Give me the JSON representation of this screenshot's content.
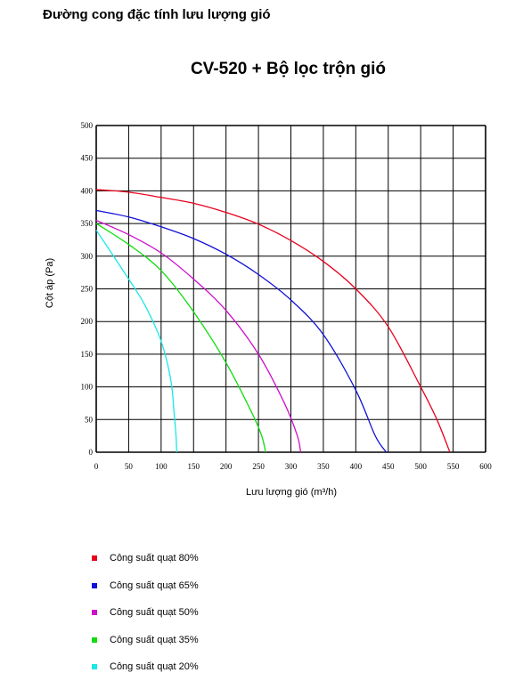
{
  "page_heading": "Đường cong đặc tính lưu lượng gió",
  "chart_data": {
    "type": "line",
    "title": "CV-520 + Bộ lọc trộn gió",
    "xlabel": "Lưu lượng gió  (m³/h)",
    "ylabel": "Cột áp (Pa)",
    "xlim": [
      0,
      600
    ],
    "ylim": [
      0,
      500
    ],
    "xticks": [
      0,
      50,
      100,
      150,
      200,
      250,
      300,
      350,
      400,
      450,
      500,
      550,
      600
    ],
    "yticks": [
      0,
      50,
      100,
      150,
      200,
      250,
      300,
      350,
      400,
      450,
      500
    ],
    "grid": true,
    "legend_position": "bottom",
    "series": [
      {
        "name": "Công suất quạt 80%",
        "color": "#e8001c",
        "points": [
          [
            0,
            402
          ],
          [
            50,
            398
          ],
          [
            100,
            390
          ],
          [
            150,
            381
          ],
          [
            200,
            367
          ],
          [
            250,
            349
          ],
          [
            300,
            324
          ],
          [
            350,
            292
          ],
          [
            400,
            250
          ],
          [
            450,
            192
          ],
          [
            500,
            100
          ],
          [
            525,
            50
          ],
          [
            545,
            0
          ]
        ]
      },
      {
        "name": "Công suất quạt 65%",
        "color": "#1010d8",
        "points": [
          [
            0,
            370
          ],
          [
            50,
            360
          ],
          [
            100,
            345
          ],
          [
            150,
            327
          ],
          [
            200,
            303
          ],
          [
            250,
            272
          ],
          [
            300,
            233
          ],
          [
            350,
            180
          ],
          [
            400,
            95
          ],
          [
            430,
            25
          ],
          [
            447,
            0
          ]
        ]
      },
      {
        "name": "Công suất quạt 50%",
        "color": "#cc10cc",
        "points": [
          [
            0,
            355
          ],
          [
            50,
            333
          ],
          [
            100,
            305
          ],
          [
            150,
            265
          ],
          [
            200,
            217
          ],
          [
            250,
            150
          ],
          [
            290,
            75
          ],
          [
            310,
            25
          ],
          [
            315,
            0
          ]
        ]
      },
      {
        "name": "Công suất quạt 35%",
        "color": "#10dd10",
        "points": [
          [
            0,
            350
          ],
          [
            50,
            318
          ],
          [
            100,
            278
          ],
          [
            150,
            215
          ],
          [
            200,
            137
          ],
          [
            240,
            60
          ],
          [
            255,
            25
          ],
          [
            261,
            0
          ]
        ]
      },
      {
        "name": "Công suất quạt 20%",
        "color": "#18e8e8",
        "points": [
          [
            0,
            340
          ],
          [
            50,
            265
          ],
          [
            75,
            225
          ],
          [
            100,
            170
          ],
          [
            115,
            110
          ],
          [
            120,
            60
          ],
          [
            123,
            25
          ],
          [
            124,
            0
          ]
        ]
      }
    ]
  }
}
